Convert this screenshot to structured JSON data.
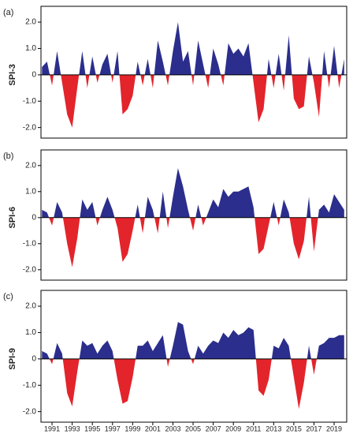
{
  "chart_data": [
    {
      "type": "area",
      "label": "(a)",
      "y_label": "SPI-3",
      "x": [
        1990,
        1990.5,
        1991,
        1991.5,
        1992,
        1992.5,
        1993,
        1993.5,
        1994,
        1994.5,
        1995,
        1995.5,
        1996,
        1996.5,
        1997,
        1997.5,
        1998,
        1998.5,
        1999,
        1999.5,
        2000,
        2000.5,
        2001,
        2001.5,
        2002,
        2002.5,
        2003,
        2003.5,
        2004,
        2004.5,
        2005,
        2005.5,
        2006,
        2006.5,
        2007,
        2007.5,
        2008,
        2008.5,
        2009,
        2009.5,
        2010,
        2010.5,
        2011,
        2011.5,
        2012,
        2012.5,
        2013,
        2013.5,
        2014,
        2014.5,
        2015,
        2015.5,
        2016,
        2016.5,
        2017,
        2017.5,
        2018,
        2018.5,
        2019,
        2019.5,
        2020
      ],
      "values": [
        0.3,
        0.5,
        -0.4,
        0.9,
        -0.3,
        -1.5,
        -2.0,
        -0.5,
        0.9,
        -0.5,
        0.7,
        -0.3,
        0.4,
        0.8,
        -0.3,
        0.9,
        -1.5,
        -1.3,
        -0.8,
        0.5,
        -0.4,
        0.6,
        -0.5,
        1.3,
        0.5,
        -0.4,
        0.9,
        2.0,
        0.5,
        0.9,
        -0.4,
        1.3,
        0.4,
        -0.5,
        1.0,
        0.4,
        -0.4,
        1.2,
        0.8,
        1.0,
        0.7,
        1.2,
        -0.3,
        -1.8,
        -1.3,
        0.6,
        -0.5,
        0.8,
        -0.6,
        1.5,
        -0.9,
        -1.3,
        -1.2,
        0.7,
        -0.3,
        -1.6,
        0.9,
        -0.5,
        1.1,
        -0.5,
        0.6
      ],
      "positive_color": "#2b2e8c",
      "negative_color": "#e3242b",
      "xlim": [
        1989.9,
        2020.25
      ],
      "ylim": [
        -2.4,
        2.6
      ],
      "yticks": [
        {
          "value": 2,
          "label": "2.0"
        },
        {
          "value": 1,
          "label": "1.0"
        },
        0,
        {
          "value": -1,
          "label": "-1.0"
        },
        {
          "value": -2,
          "label": "-2.0"
        }
      ]
    },
    {
      "type": "area",
      "label": "(b)",
      "y_label": "SPI-6",
      "x": [
        1990,
        1990.5,
        1991,
        1991.5,
        1992,
        1992.5,
        1993,
        1993.5,
        1994,
        1994.5,
        1995,
        1995.5,
        1996,
        1996.5,
        1997,
        1997.5,
        1998,
        1998.5,
        1999,
        1999.5,
        2000,
        2000.5,
        2001,
        2001.5,
        2002,
        2002.5,
        2003,
        2003.5,
        2004,
        2004.5,
        2005,
        2005.5,
        2006,
        2006.5,
        2007,
        2007.5,
        2008,
        2008.5,
        2009,
        2009.5,
        2010,
        2010.5,
        2011,
        2011.5,
        2012,
        2012.5,
        2013,
        2013.5,
        2014,
        2014.5,
        2015,
        2015.5,
        2016,
        2016.5,
        2017,
        2017.5,
        2018,
        2018.5,
        2019,
        2019.5,
        2020
      ],
      "values": [
        0.3,
        0.2,
        -0.3,
        0.6,
        0.2,
        -1.0,
        -1.9,
        -0.8,
        0.7,
        0.3,
        0.6,
        -0.3,
        0.3,
        0.8,
        0.3,
        -0.4,
        -1.7,
        -1.4,
        -0.5,
        0.5,
        -0.6,
        0.8,
        0.3,
        -0.6,
        1.0,
        -0.4,
        0.8,
        1.9,
        1.2,
        0.3,
        -0.5,
        0.5,
        -0.3,
        0.2,
        0.7,
        0.4,
        1.1,
        0.8,
        1.0,
        1.0,
        1.1,
        1.2,
        0.4,
        -1.4,
        -1.2,
        -0.3,
        0.6,
        -0.3,
        0.7,
        0.2,
        -1.0,
        -1.6,
        -0.9,
        0.8,
        -1.3,
        0.3,
        0.5,
        0.2,
        0.9,
        0.6,
        0.3
      ],
      "positive_color": "#2b2e8c",
      "negative_color": "#e3242b",
      "xlim": [
        1989.9,
        2020.25
      ],
      "ylim": [
        -2.4,
        2.6
      ],
      "yticks": [
        {
          "value": 2,
          "label": "2.0"
        },
        {
          "value": 1,
          "label": "1.0"
        },
        0,
        {
          "value": -1,
          "label": "-1.0"
        },
        {
          "value": -2,
          "label": "-2.0"
        }
      ]
    },
    {
      "type": "area",
      "label": "(c)",
      "y_label": "SPI-9",
      "x": [
        1990,
        1990.5,
        1991,
        1991.5,
        1992,
        1992.5,
        1993,
        1993.5,
        1994,
        1994.5,
        1995,
        1995.5,
        1996,
        1996.5,
        1997,
        1997.5,
        1998,
        1998.5,
        1999,
        1999.5,
        2000,
        2000.5,
        2001,
        2001.5,
        2002,
        2002.5,
        2003,
        2003.5,
        2004,
        2004.5,
        2005,
        2005.5,
        2006,
        2006.5,
        2007,
        2007.5,
        2008,
        2008.5,
        2009,
        2009.5,
        2010,
        2010.5,
        2011,
        2011.5,
        2012,
        2012.5,
        2013,
        2013.5,
        2014,
        2014.5,
        2015,
        2015.5,
        2016,
        2016.5,
        2017,
        2017.5,
        2018,
        2018.5,
        2019,
        2019.5,
        2020
      ],
      "values": [
        0.3,
        0.2,
        -0.2,
        0.6,
        0.2,
        -1.3,
        -1.8,
        -0.5,
        0.7,
        0.5,
        0.6,
        0.2,
        0.5,
        0.7,
        0.3,
        -0.8,
        -1.7,
        -1.6,
        -0.7,
        0.5,
        0.5,
        0.7,
        0.3,
        0.6,
        0.9,
        -0.3,
        0.5,
        1.4,
        1.3,
        0.3,
        -0.2,
        0.5,
        0.2,
        0.5,
        0.7,
        0.6,
        1.0,
        0.8,
        1.1,
        0.9,
        1.0,
        1.2,
        1.1,
        -1.2,
        -1.4,
        -0.8,
        0.5,
        0.4,
        0.8,
        0.5,
        -0.7,
        -1.9,
        -0.9,
        0.5,
        -0.6,
        0.5,
        0.6,
        0.8,
        0.8,
        0.9,
        0.9
      ],
      "positive_color": "#2b2e8c",
      "negative_color": "#e3242b",
      "xlim": [
        1989.9,
        2020.25
      ],
      "ylim": [
        -2.4,
        2.6
      ],
      "yticks": [
        {
          "value": 2,
          "label": "2.0"
        },
        {
          "value": 1,
          "label": "1.0"
        },
        0,
        {
          "value": -1,
          "label": "-1.0"
        },
        {
          "value": -2,
          "label": "-2.0"
        }
      ],
      "xticks": [
        1991,
        1993,
        1995,
        1997,
        1999,
        2001,
        2003,
        2005,
        2007,
        2009,
        2011,
        2013,
        2015,
        2017,
        2019
      ]
    }
  ]
}
